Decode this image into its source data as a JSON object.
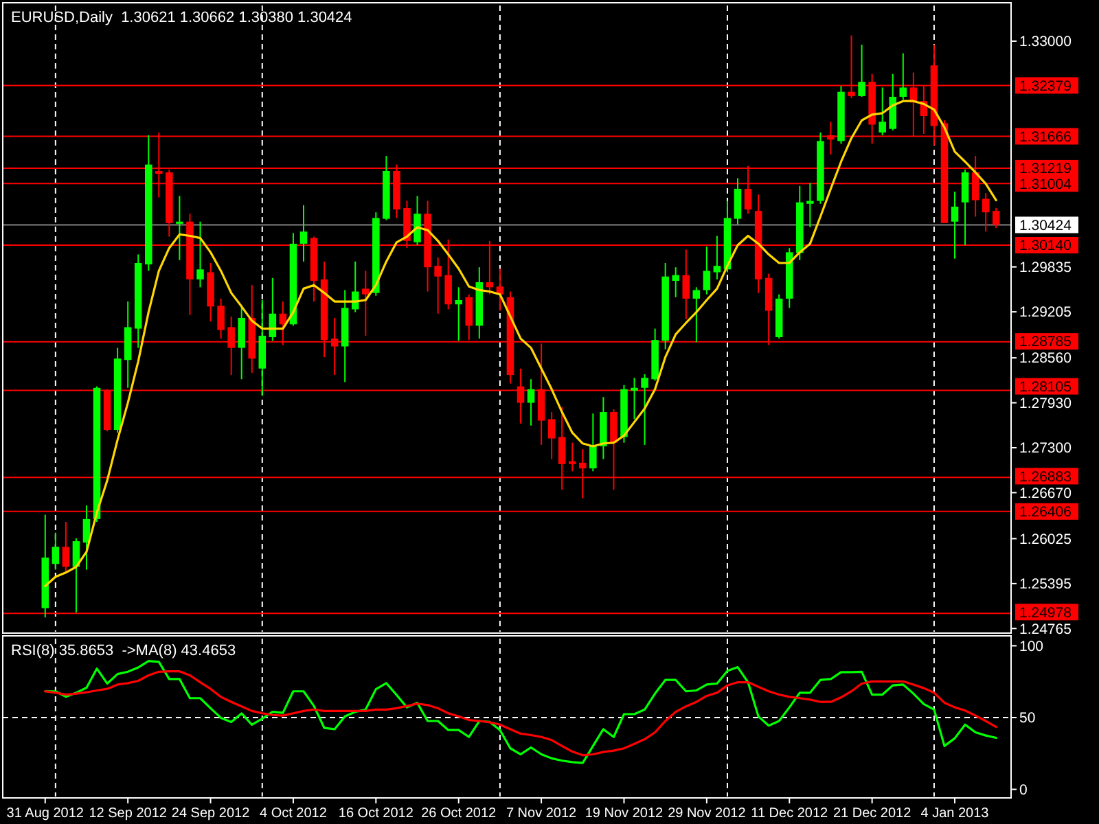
{
  "chart_data": [
    {
      "type": "candlestick",
      "title": "EURUSD,Daily  1.30621 1.30662 1.30380 1.30424",
      "tick_labels": "y",
      "grid": "x",
      "colors": [
        "#00ff00",
        "#00ff00",
        "#ff0000",
        "#00ff00",
        "#00ff00",
        "#00ff00",
        "#ff0000",
        "#00ff00",
        "#00ff00",
        "#00ff00",
        "#00ff00",
        "#ff0000",
        "#ff0000",
        "#00ff00",
        "#ff0000",
        "#00ff00",
        "#ff0000",
        "#ff0000",
        "#ff0000",
        "#00ff00",
        "#ff0000",
        "#00ff00",
        "#00ff00",
        "#ff0000",
        "#00ff00",
        "#00ff00",
        "#ff0000",
        "#ff0000",
        "#ff0000",
        "#00ff00",
        "#00ff00",
        "#ff0000",
        "#00ff00",
        "#00ff00",
        "#ff0000",
        "#ff0000",
        "#00ff00",
        "#ff0000",
        "#ff0000",
        "#ff0000",
        "#00ff00",
        "#ff0000",
        "#00ff00",
        "#ff0000",
        "#ff0000",
        "#ff0000",
        "#ff0000",
        "#00ff00",
        "#ff0000",
        "#ff0000",
        "#ff0000",
        "#ff0000",
        "#ff0000",
        "#00ff00",
        "#00ff00",
        "#ff0000",
        "#00ff00",
        "#00ff00",
        "#00ff00",
        "#00ff00",
        "#00ff00",
        "#00ff00",
        "#ff0000",
        "#00ff00",
        "#00ff00",
        "#00ff00",
        "#00ff00",
        "#00ff00",
        "#ff0000",
        "#ff0000",
        "#ff0000",
        "#00ff00",
        "#00ff00",
        "#00ff00",
        "#00ff00",
        "#00ff00",
        "#ff0000",
        "#00ff00",
        "#ff0000",
        "#00ff00",
        "#ff0000",
        "#00ff00",
        "#00ff00",
        "#00ff00",
        "#ff0000",
        "#ff0000",
        "#ff0000",
        "#ff0000",
        "#00ff00",
        "#00ff00",
        "#ff0000",
        "#ff0000",
        "#ff0000"
      ],
      "categories": [
        null,
        null,
        null,
        null,
        null,
        null,
        null,
        null,
        null,
        null,
        null,
        null,
        null,
        null,
        null,
        null,
        null,
        null,
        null,
        null,
        null,
        null,
        null,
        null,
        null,
        null,
        null,
        null,
        null,
        null,
        null,
        null,
        null,
        null,
        null,
        null,
        null,
        null,
        null,
        null,
        null,
        null,
        null,
        null,
        null,
        null,
        null,
        null,
        null,
        null,
        null,
        null,
        null,
        null,
        null,
        null,
        null,
        null,
        null,
        null,
        null,
        null,
        null,
        null,
        null,
        null,
        null,
        null,
        null,
        null,
        null,
        null,
        null,
        null,
        null,
        null,
        null,
        null,
        null,
        null,
        null,
        null,
        null,
        null,
        null,
        null,
        null,
        null,
        null,
        null,
        null,
        null,
        null
      ],
      "ohlc": [
        [
          1.2505,
          1.2636,
          1.2492,
          1.2576
        ],
        [
          1.2567,
          1.2611,
          1.2559,
          1.2591
        ],
        [
          1.2591,
          1.2626,
          1.2555,
          1.2563
        ],
        [
          1.2563,
          1.2603,
          1.2499,
          1.2599
        ],
        [
          1.2597,
          1.2649,
          1.2559,
          1.263
        ],
        [
          1.263,
          1.2816,
          1.2626,
          1.2814
        ],
        [
          1.281,
          1.2812,
          1.2753,
          1.2755
        ],
        [
          1.2755,
          1.287,
          1.2751,
          1.2855
        ],
        [
          1.2853,
          1.2935,
          1.2814,
          1.2899
        ],
        [
          1.2897,
          1.3001,
          1.287,
          1.2989
        ],
        [
          1.2987,
          1.3168,
          1.2978,
          1.3127
        ],
        [
          1.3118,
          1.3172,
          1.3081,
          1.3114
        ],
        [
          1.3116,
          1.312,
          1.3026,
          1.3045
        ],
        [
          1.3044,
          1.3083,
          1.2993,
          1.3047
        ],
        [
          1.3047,
          1.3058,
          1.2916,
          1.2966
        ],
        [
          1.2966,
          1.3047,
          1.2955,
          1.298
        ],
        [
          1.2976,
          1.2989,
          1.2907,
          1.2928
        ],
        [
          1.2929,
          1.2939,
          1.2883,
          1.2895
        ],
        [
          1.2899,
          1.2914,
          1.2832,
          1.287
        ],
        [
          1.287,
          1.2928,
          1.2826,
          1.2912
        ],
        [
          1.2912,
          1.2958,
          1.2835,
          1.2855
        ],
        [
          1.2841,
          1.2937,
          1.2803,
          1.2887
        ],
        [
          1.2885,
          1.2968,
          1.288,
          1.2918
        ],
        [
          1.2918,
          1.2935,
          1.2874,
          1.2903
        ],
        [
          1.2903,
          1.3031,
          1.2901,
          1.3016
        ],
        [
          1.3016,
          1.307,
          1.2991,
          1.3033
        ],
        [
          1.3024,
          1.3026,
          1.2935,
          1.2964
        ],
        [
          1.2966,
          1.2991,
          1.2857,
          1.2881
        ],
        [
          1.2883,
          1.2912,
          1.2832,
          1.2872
        ],
        [
          1.2872,
          1.2951,
          1.2822,
          1.2926
        ],
        [
          1.2924,
          1.2991,
          1.292,
          1.2949
        ],
        [
          1.2953,
          1.2978,
          1.2887,
          1.2945
        ],
        [
          1.2947,
          1.306,
          1.2943,
          1.3052
        ],
        [
          1.3051,
          1.3139,
          1.3049,
          1.3118
        ],
        [
          1.3118,
          1.3127,
          1.3052,
          1.3064
        ],
        [
          1.3066,
          1.3076,
          1.301,
          1.302
        ],
        [
          1.3018,
          1.3083,
          1.3014,
          1.3058
        ],
        [
          1.3058,
          1.3076,
          1.2949,
          1.2983
        ],
        [
          1.2985,
          1.2997,
          1.2918,
          1.297
        ],
        [
          1.2972,
          1.3022,
          1.2924,
          1.2931
        ],
        [
          1.2931,
          1.2955,
          1.288,
          1.2937
        ],
        [
          1.2941,
          1.2945,
          1.2881,
          1.2901
        ],
        [
          1.2901,
          1.2983,
          1.2883,
          1.2962
        ],
        [
          1.2962,
          1.302,
          1.2945,
          1.2955
        ],
        [
          1.2956,
          1.2981,
          1.2922,
          1.2945
        ],
        [
          1.2941,
          1.2949,
          1.282,
          1.2832
        ],
        [
          1.2816,
          1.2841,
          1.2764,
          1.2793
        ],
        [
          1.2793,
          1.2826,
          1.2761,
          1.2812
        ],
        [
          1.2812,
          1.2876,
          1.2734,
          1.2768
        ],
        [
          1.277,
          1.278,
          1.2714,
          1.2743
        ],
        [
          1.2745,
          1.2787,
          1.2671,
          1.2707
        ],
        [
          1.2711,
          1.2737,
          1.2697,
          1.2707
        ],
        [
          1.2709,
          1.2728,
          1.2659,
          1.2701
        ],
        [
          1.2701,
          1.2778,
          1.2697,
          1.2732
        ],
        [
          1.2732,
          1.2801,
          1.2714,
          1.278
        ],
        [
          1.278,
          1.2784,
          1.2671,
          1.2737
        ],
        [
          1.2745,
          1.2818,
          1.2737,
          1.2812
        ],
        [
          1.281,
          1.2828,
          1.277,
          1.2814
        ],
        [
          1.2814,
          1.2833,
          1.2734,
          1.2828
        ],
        [
          1.2826,
          1.2897,
          1.2824,
          1.2881
        ],
        [
          1.288,
          1.2989,
          1.2868,
          1.297
        ],
        [
          1.2964,
          1.2983,
          1.2941,
          1.2972
        ],
        [
          1.2972,
          1.3008,
          1.291,
          1.2939
        ],
        [
          1.2939,
          1.2955,
          1.2878,
          1.2951
        ],
        [
          1.2951,
          1.3012,
          1.2945,
          1.2978
        ],
        [
          1.2976,
          1.3027,
          1.2966,
          1.2985
        ],
        [
          1.298,
          1.3076,
          1.2976,
          1.3052
        ],
        [
          1.3051,
          1.3108,
          1.3043,
          1.3093
        ],
        [
          1.3093,
          1.3125,
          1.3058,
          1.3064
        ],
        [
          1.3062,
          1.3085,
          1.2947,
          1.2966
        ],
        [
          1.2968,
          1.2974,
          1.2874,
          1.2922
        ],
        [
          1.2885,
          1.2945,
          1.2883,
          1.2939
        ],
        [
          1.2939,
          1.301,
          1.2926,
          1.3004
        ],
        [
          1.3003,
          1.3097,
          1.2993,
          1.3074
        ],
        [
          1.3072,
          1.3101,
          1.3039,
          1.3076
        ],
        [
          1.3076,
          1.3172,
          1.3072,
          1.316
        ],
        [
          1.3168,
          1.3187,
          1.3141,
          1.3162
        ],
        [
          1.316,
          1.3237,
          1.3156,
          1.3229
        ],
        [
          1.3229,
          1.3308,
          1.322,
          1.3223
        ],
        [
          1.3223,
          1.3295,
          1.3222,
          1.3243
        ],
        [
          1.3243,
          1.3254,
          1.3156,
          1.3183
        ],
        [
          1.3172,
          1.3235,
          1.3168,
          1.3187
        ],
        [
          1.3177,
          1.3254,
          1.3175,
          1.3222
        ],
        [
          1.3222,
          1.3283,
          1.3218,
          1.3235
        ],
        [
          1.3235,
          1.3256,
          1.3166,
          1.3214
        ],
        [
          1.3216,
          1.3237,
          1.317,
          1.3195
        ],
        [
          1.3266,
          1.3295,
          1.3154,
          1.3181
        ],
        [
          1.3185,
          1.3189,
          1.3045,
          1.3045
        ],
        [
          1.3047,
          1.3089,
          1.2995,
          1.3068
        ],
        [
          1.3074,
          1.312,
          1.3014,
          1.3116
        ],
        [
          1.3116,
          1.3139,
          1.3054,
          1.3077
        ],
        [
          1.3079,
          1.3087,
          1.3033,
          1.306
        ],
        [
          1.30621,
          1.30662,
          1.3038,
          1.30424
        ]
      ],
      "series": [
        {
          "type": "line",
          "color": "#ffd700",
          "values": [
            1.2536,
            1.2549,
            1.2555,
            1.2563,
            1.2584,
            1.2639,
            1.2684,
            1.2741,
            1.2793,
            1.2851,
            1.292,
            1.2978,
            1.301,
            1.3029,
            1.3027,
            1.3024,
            1.3004,
            1.2978,
            1.2947,
            1.2928,
            1.2908,
            1.2897,
            1.2897,
            1.2897,
            1.292,
            1.2953,
            1.2958,
            1.2947,
            1.2935,
            1.2935,
            1.2935,
            1.2937,
            1.2958,
            1.2991,
            1.3018,
            1.3026,
            1.3039,
            1.3035,
            1.302,
            1.3001,
            1.2981,
            1.2956,
            1.2951,
            1.2949,
            1.2945,
            1.2914,
            1.2883,
            1.287,
            1.2841,
            1.2812,
            1.278,
            1.2751,
            1.2736,
            1.2732,
            1.2736,
            1.2737,
            1.2747,
            1.2766,
            1.2785,
            1.2812,
            1.2857,
            1.2889,
            1.2905,
            1.292,
            1.2937,
            1.2953,
            1.2985,
            1.3014,
            1.3027,
            1.3016,
            1.3001,
            1.2989,
            1.2989,
            1.3004,
            1.3016,
            1.3054,
            1.3093,
            1.3131,
            1.3164,
            1.3189,
            1.3197,
            1.3199,
            1.321,
            1.3216,
            1.3216,
            1.3212,
            1.3204,
            1.3179,
            1.3145,
            1.3131,
            1.3116,
            1.31,
            1.3077
          ]
        }
      ],
      "ylim": [
        1.2472,
        1.335
      ],
      "yticks": [
        {
          "value": 1.33,
          "label": "1.33000"
        },
        {
          "value": 1.29835,
          "label": "1.29835"
        },
        {
          "value": 1.29205,
          "label": "1.29205"
        },
        {
          "value": 1.2856,
          "label": "1.28560"
        },
        {
          "value": 1.2793,
          "label": "1.27930"
        },
        {
          "value": 1.273,
          "label": "1.27300"
        },
        {
          "value": 1.2667,
          "label": "1.26670"
        },
        {
          "value": 1.26025,
          "label": "1.26025"
        },
        {
          "value": 1.25395,
          "label": "1.25395"
        },
        {
          "value": 1.24765,
          "label": "1.24765"
        }
      ],
      "ref_lines": [
        {
          "axis": "y",
          "value": 1.32379,
          "label": "1.32379",
          "color": "#ff0000"
        },
        {
          "axis": "y",
          "value": 1.31666,
          "label": "1.31666",
          "color": "#ff0000"
        },
        {
          "axis": "y",
          "value": 1.31219,
          "label": "1.31219",
          "color": "#ff0000"
        },
        {
          "axis": "y",
          "value": 1.31004,
          "label": "1.31004",
          "color": "#ff0000"
        },
        {
          "axis": "y",
          "value": 1.30424,
          "label": "1.30424",
          "color": "#808080"
        },
        {
          "axis": "y",
          "value": 1.3014,
          "label": "1.30140",
          "color": "#ff0000"
        },
        {
          "axis": "y",
          "value": 1.28785,
          "label": "1.28785",
          "color": "#ff0000"
        },
        {
          "axis": "y",
          "value": 1.28105,
          "label": "1.28105",
          "color": "#ff0000"
        },
        {
          "axis": "y",
          "value": 1.26883,
          "label": "1.26883",
          "color": "#ff0000"
        },
        {
          "axis": "y",
          "value": 1.26406,
          "label": "1.26406",
          "color": "#ff0000"
        },
        {
          "axis": "y",
          "value": 1.24978,
          "label": "1.24978",
          "color": "#ff0000"
        }
      ]
    },
    {
      "type": "line",
      "title": "RSI(8) 35.8653  ->MA(8) 43.4653",
      "categories": [
        "31 Aug 2012",
        null,
        null,
        null,
        null,
        null,
        null,
        null,
        "12 Sep 2012",
        null,
        null,
        null,
        null,
        null,
        null,
        null,
        "24 Sep 2012",
        null,
        null,
        null,
        null,
        null,
        null,
        null,
        "4 Oct 2012",
        null,
        null,
        null,
        null,
        null,
        null,
        null,
        "16 Oct 2012",
        null,
        null,
        null,
        null,
        null,
        null,
        null,
        "26 Oct 2012",
        null,
        null,
        null,
        null,
        null,
        null,
        null,
        "7 Nov 2012",
        null,
        null,
        null,
        null,
        null,
        null,
        null,
        "19 Nov 2012",
        null,
        null,
        null,
        null,
        null,
        null,
        null,
        "29 Nov 2012",
        null,
        null,
        null,
        null,
        null,
        null,
        null,
        "11 Dec 2012",
        null,
        null,
        null,
        null,
        null,
        null,
        null,
        "21 Dec 2012",
        null,
        null,
        null,
        null,
        null,
        null,
        null,
        "4 Jan 2013",
        null,
        null,
        null,
        null
      ],
      "series": [
        {
          "color": "#00ff00",
          "values": [
            68.3,
            68.3,
            64.5,
            67.3,
            70.8,
            84.1,
            73.7,
            80.3,
            81.9,
            84.9,
            89.4,
            88.8,
            76.8,
            76.8,
            63.5,
            63.5,
            56.5,
            49.8,
            46.9,
            52.9,
            45.0,
            49.2,
            54.0,
            53.3,
            68.3,
            68.3,
            58.1,
            42.8,
            41.9,
            50.8,
            54.0,
            55.6,
            69.8,
            74.0,
            65.7,
            57.1,
            60.3,
            47.6,
            47.6,
            41.3,
            41.3,
            36.5,
            47.6,
            47.0,
            41.3,
            28.6,
            24.4,
            29.2,
            24.4,
            21.6,
            20.0,
            19.0,
            18.4,
            30.2,
            41.9,
            36.5,
            52.4,
            52.4,
            55.6,
            66.7,
            76.2,
            76.2,
            68.3,
            68.9,
            73.0,
            73.7,
            82.5,
            85.1,
            74.6,
            50.8,
            44.4,
            47.6,
            57.1,
            67.3,
            67.3,
            76.2,
            76.8,
            81.6,
            81.6,
            81.9,
            66.0,
            66.0,
            72.4,
            73.0,
            66.7,
            59.4,
            55.6,
            30.2,
            35.6,
            45.1,
            39.7,
            37.5,
            35.87
          ]
        },
        {
          "color": "#ff0000",
          "values": [
            68.3,
            67.3,
            66.0,
            66.7,
            67.6,
            68.9,
            70.0,
            73.0,
            74.0,
            75.6,
            79.4,
            81.9,
            82.2,
            82.2,
            79.4,
            74.6,
            70.0,
            64.4,
            60.9,
            57.8,
            54.6,
            53.0,
            51.8,
            51.4,
            53.0,
            54.6,
            55.6,
            54.6,
            54.6,
            54.6,
            54.6,
            54.6,
            55.6,
            55.6,
            56.5,
            58.1,
            59.7,
            58.7,
            56.5,
            53.0,
            50.8,
            48.3,
            47.6,
            46.7,
            45.1,
            41.9,
            38.8,
            37.8,
            36.5,
            34.3,
            30.2,
            26.3,
            23.8,
            24.4,
            26.0,
            27.0,
            28.6,
            31.7,
            34.9,
            39.7,
            47.6,
            54.0,
            57.8,
            60.9,
            65.1,
            67.3,
            72.4,
            74.6,
            74.6,
            71.4,
            68.3,
            66.0,
            64.4,
            63.5,
            62.5,
            60.9,
            60.9,
            64.1,
            68.3,
            73.7,
            75.2,
            75.2,
            75.2,
            75.2,
            73.0,
            70.5,
            67.3,
            60.3,
            57.1,
            54.9,
            51.4,
            47.6,
            43.47
          ]
        }
      ],
      "ylim": [
        -5,
        105
      ],
      "yticks": [
        0,
        50,
        100
      ],
      "grid": "x",
      "ref_lines": [
        {
          "axis": "y",
          "value": 50,
          "color": "#ffffff",
          "line_style": "dashed"
        }
      ]
    }
  ]
}
